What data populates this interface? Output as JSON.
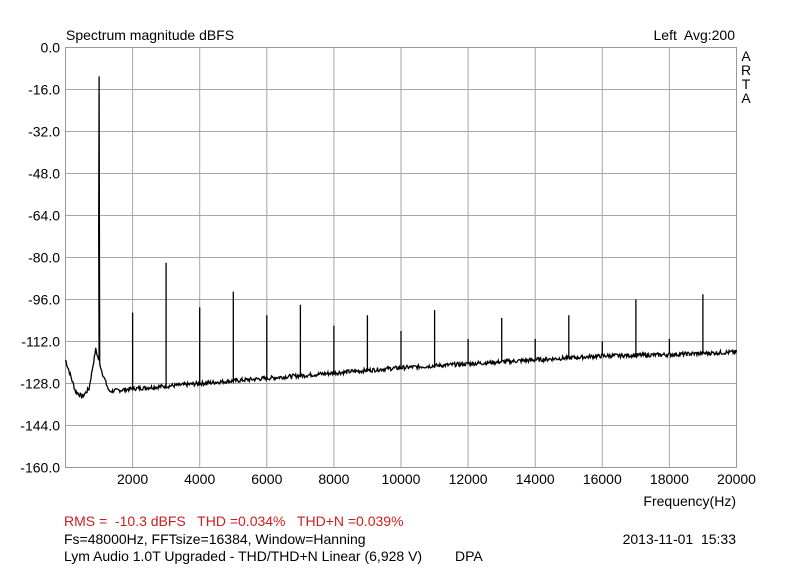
{
  "chart_data": {
    "type": "line",
    "title": "Spectrum magnitude dBFS",
    "channel_info": "Left  Avg:200",
    "brand": "ARTA",
    "xlabel": "Frequency(Hz)",
    "ylabel": "",
    "xlim": [
      0,
      20000
    ],
    "ylim": [
      -160,
      0
    ],
    "x_ticks": [
      2000,
      4000,
      6000,
      8000,
      10000,
      12000,
      14000,
      16000,
      18000,
      20000
    ],
    "x_tick_labels": [
      "2000",
      "4000",
      "6000",
      "8000",
      "10000",
      "12000",
      "14000",
      "16000",
      "18000",
      "20000"
    ],
    "y_ticks": [
      0,
      -16,
      -32,
      -48,
      -64,
      -80,
      -96,
      -112,
      -128,
      -144,
      -160
    ],
    "y_tick_labels": [
      "0.0",
      "-16.0",
      "-32.0",
      "-48.0",
      "-64.0",
      "-80.0",
      "-96.0",
      "-112.0",
      "-128.0",
      "-144.0",
      "-160.0"
    ],
    "grid": true,
    "noise_floor": [
      [
        0,
        -119
      ],
      [
        150,
        -125
      ],
      [
        300,
        -131
      ],
      [
        500,
        -133
      ],
      [
        700,
        -130
      ],
      [
        900,
        -115
      ],
      [
        1100,
        -124
      ],
      [
        1300,
        -131
      ],
      [
        2000,
        -130
      ],
      [
        4000,
        -128
      ],
      [
        6000,
        -126
      ],
      [
        8000,
        -124
      ],
      [
        10000,
        -122
      ],
      [
        12000,
        -120.5
      ],
      [
        14000,
        -119
      ],
      [
        16000,
        -117.5
      ],
      [
        18000,
        -117
      ],
      [
        20000,
        -116
      ]
    ],
    "series": [
      {
        "values": [
          {
            "x": 1000,
            "y": -11
          },
          {
            "x": 2000,
            "y": -101
          },
          {
            "x": 3000,
            "y": -82
          },
          {
            "x": 4000,
            "y": -99
          },
          {
            "x": 5000,
            "y": -93
          },
          {
            "x": 6000,
            "y": -102
          },
          {
            "x": 7000,
            "y": -98
          },
          {
            "x": 8000,
            "y": -106
          },
          {
            "x": 9000,
            "y": -102
          },
          {
            "x": 10000,
            "y": -108
          },
          {
            "x": 11000,
            "y": -100
          },
          {
            "x": 12000,
            "y": -111
          },
          {
            "x": 13000,
            "y": -103
          },
          {
            "x": 14000,
            "y": -111
          },
          {
            "x": 15000,
            "y": -102
          },
          {
            "x": 16000,
            "y": -112
          },
          {
            "x": 17000,
            "y": -96
          },
          {
            "x": 18000,
            "y": -111
          },
          {
            "x": 19000,
            "y": -94
          }
        ]
      }
    ]
  },
  "footer": {
    "measurements": "RMS =  -10.3 dBFS   THD =0.034%   THD+N =0.039%",
    "settings": "Fs=48000Hz, FFTsize=16384, Window=Hanning",
    "timestamp": "2013-11-01  15:33",
    "device": "Lym Audio 1.0T Upgraded - THD/THD+N Linear (6,928 V)",
    "tag": "DPA"
  }
}
